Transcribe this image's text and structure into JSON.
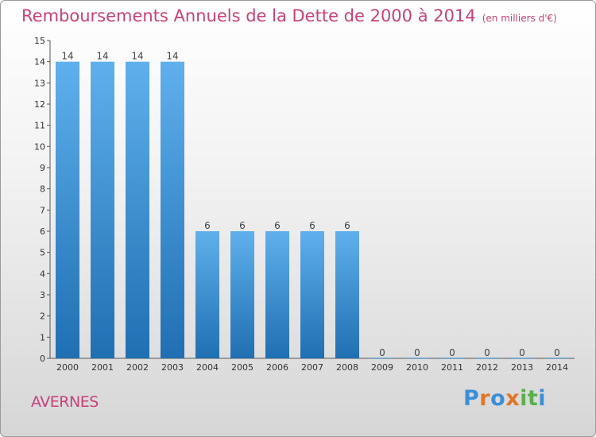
{
  "title": "Remboursements Annuels de la Dette de 2000 à 2014",
  "unit": "(en milliers d'€)",
  "commune": "AVERNES",
  "logo": {
    "text": "Proxiti",
    "colors": [
      "#3c8fd6",
      "#e0762b",
      "#3c8fd6",
      "#e0762b",
      "#5ab04a",
      "#5ab04a",
      "#3c8fd6"
    ]
  },
  "colors": {
    "bar_top": "#5fb0ec",
    "bar_bottom": "#1f6fb2",
    "title": "#c8407a"
  },
  "chart_data": {
    "type": "bar",
    "categories": [
      "2000",
      "2001",
      "2002",
      "2003",
      "2004",
      "2005",
      "2006",
      "2007",
      "2008",
      "2009",
      "2010",
      "2011",
      "2012",
      "2013",
      "2014"
    ],
    "values": [
      14,
      14,
      14,
      14,
      6,
      6,
      6,
      6,
      6,
      0,
      0,
      0,
      0,
      0,
      0
    ],
    "ylim": [
      0,
      15
    ],
    "yticks": [
      0,
      1,
      2,
      3,
      4,
      5,
      6,
      7,
      8,
      9,
      10,
      11,
      12,
      13,
      14,
      15
    ],
    "grid": false,
    "xlabel": "",
    "ylabel": ""
  }
}
